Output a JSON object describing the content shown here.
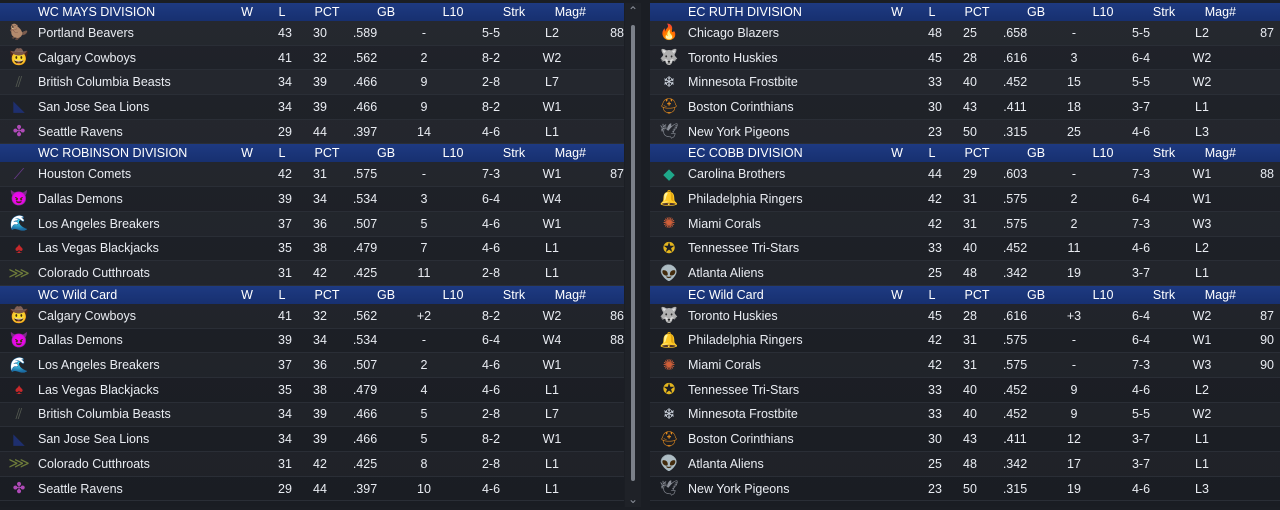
{
  "columns": {
    "w": "W",
    "l": "L",
    "pct": "PCT",
    "gb": "GB",
    "l10": "L10",
    "strk": "Strk",
    "mag": "Mag#"
  },
  "left": [
    {
      "title": "WC MAYS DIVISION",
      "rows": [
        {
          "logo": "beaver-icon",
          "color": "#2f7a3c",
          "glyph": "🦫",
          "team": "Portland Beavers",
          "w": "43",
          "l": "30",
          "pct": ".589",
          "gb": "-",
          "l10": "5-5",
          "strk": "L2",
          "mag": "88"
        },
        {
          "logo": "cowboy-hat-icon",
          "color": "#4aa9d8",
          "glyph": "🤠",
          "team": "Calgary Cowboys",
          "w": "41",
          "l": "32",
          "pct": ".562",
          "gb": "2",
          "l10": "8-2",
          "strk": "W2",
          "mag": ""
        },
        {
          "logo": "beast-claw-icon",
          "color": "#555b52",
          "glyph": "⫽",
          "team": "British Columbia Beasts",
          "w": "34",
          "l": "39",
          "pct": ".466",
          "gb": "9",
          "l10": "2-8",
          "strk": "L7",
          "mag": ""
        },
        {
          "logo": "sea-lion-icon",
          "color": "#1e2f6e",
          "glyph": "◣",
          "team": "San Jose Sea Lions",
          "w": "34",
          "l": "39",
          "pct": ".466",
          "gb": "9",
          "l10": "8-2",
          "strk": "W1",
          "mag": ""
        },
        {
          "logo": "raven-icon",
          "color": "#b04ab8",
          "glyph": "✤",
          "team": "Seattle Ravens",
          "w": "29",
          "l": "44",
          "pct": ".397",
          "gb": "14",
          "l10": "4-6",
          "strk": "L1",
          "mag": ""
        }
      ]
    },
    {
      "title": "WC ROBINSON DIVISION",
      "rows": [
        {
          "logo": "comet-icon",
          "color": "#6a3a8c",
          "glyph": "⟋",
          "team": "Houston Comets",
          "w": "42",
          "l": "31",
          "pct": ".575",
          "gb": "-",
          "l10": "7-3",
          "strk": "W1",
          "mag": "87"
        },
        {
          "logo": "demon-icon",
          "color": "#a5221d",
          "glyph": "😈",
          "team": "Dallas Demons",
          "w": "39",
          "l": "34",
          "pct": ".534",
          "gb": "3",
          "l10": "6-4",
          "strk": "W4",
          "mag": ""
        },
        {
          "logo": "wave-icon",
          "color": "#1fa6c9",
          "glyph": "🌊",
          "team": "Los Angeles Breakers",
          "w": "37",
          "l": "36",
          "pct": ".507",
          "gb": "5",
          "l10": "4-6",
          "strk": "W1",
          "mag": ""
        },
        {
          "logo": "spade-icon",
          "color": "#c8282b",
          "glyph": "♠",
          "team": "Las Vegas Blackjacks",
          "w": "35",
          "l": "38",
          "pct": ".479",
          "gb": "7",
          "l10": "4-6",
          "strk": "L1",
          "mag": ""
        },
        {
          "logo": "fish-icon",
          "color": "#6e7c3a",
          "glyph": "⋙",
          "team": "Colorado Cutthroats",
          "w": "31",
          "l": "42",
          "pct": ".425",
          "gb": "11",
          "l10": "2-8",
          "strk": "L1",
          "mag": ""
        }
      ]
    },
    {
      "title": "WC  Wild Card",
      "rows": [
        {
          "logo": "cowboy-hat-icon",
          "color": "#4aa9d8",
          "glyph": "🤠",
          "team": "Calgary Cowboys",
          "w": "41",
          "l": "32",
          "pct": ".562",
          "gb": "+2",
          "l10": "8-2",
          "strk": "W2",
          "mag": "86"
        },
        {
          "logo": "demon-icon",
          "color": "#a5221d",
          "glyph": "😈",
          "team": "Dallas Demons",
          "w": "39",
          "l": "34",
          "pct": ".534",
          "gb": "-",
          "l10": "6-4",
          "strk": "W4",
          "mag": "88"
        },
        {
          "logo": "wave-icon",
          "color": "#1fa6c9",
          "glyph": "🌊",
          "team": "Los Angeles Breakers",
          "w": "37",
          "l": "36",
          "pct": ".507",
          "gb": "2",
          "l10": "4-6",
          "strk": "W1",
          "mag": ""
        },
        {
          "logo": "spade-icon",
          "color": "#c8282b",
          "glyph": "♠",
          "team": "Las Vegas Blackjacks",
          "w": "35",
          "l": "38",
          "pct": ".479",
          "gb": "4",
          "l10": "4-6",
          "strk": "L1",
          "mag": ""
        },
        {
          "logo": "beast-claw-icon",
          "color": "#555b52",
          "glyph": "⫽",
          "team": "British Columbia Beasts",
          "w": "34",
          "l": "39",
          "pct": ".466",
          "gb": "5",
          "l10": "2-8",
          "strk": "L7",
          "mag": ""
        },
        {
          "logo": "sea-lion-icon",
          "color": "#1e2f6e",
          "glyph": "◣",
          "team": "San Jose Sea Lions",
          "w": "34",
          "l": "39",
          "pct": ".466",
          "gb": "5",
          "l10": "8-2",
          "strk": "W1",
          "mag": ""
        },
        {
          "logo": "fish-icon",
          "color": "#6e7c3a",
          "glyph": "⋙",
          "team": "Colorado Cutthroats",
          "w": "31",
          "l": "42",
          "pct": ".425",
          "gb": "8",
          "l10": "2-8",
          "strk": "L1",
          "mag": ""
        },
        {
          "logo": "raven-icon",
          "color": "#b04ab8",
          "glyph": "✤",
          "team": "Seattle Ravens",
          "w": "29",
          "l": "44",
          "pct": ".397",
          "gb": "10",
          "l10": "4-6",
          "strk": "L1",
          "mag": ""
        }
      ]
    }
  ],
  "right": [
    {
      "title": "EC RUTH DIVISION",
      "rows": [
        {
          "logo": "flame-icon",
          "color": "#e0501c",
          "glyph": "🔥",
          "team": "Chicago Blazers",
          "w": "48",
          "l": "25",
          "pct": ".658",
          "gb": "-",
          "l10": "5-5",
          "strk": "L2",
          "mag": "87"
        },
        {
          "logo": "husky-icon",
          "color": "#9aa0aa",
          "glyph": "🐺",
          "team": "Toronto Huskies",
          "w": "45",
          "l": "28",
          "pct": ".616",
          "gb": "3",
          "l10": "6-4",
          "strk": "W2",
          "mag": ""
        },
        {
          "logo": "snowflake-icon",
          "color": "#cfd6e0",
          "glyph": "❄",
          "team": "Minnesota Frostbite",
          "w": "33",
          "l": "40",
          "pct": ".452",
          "gb": "15",
          "l10": "5-5",
          "strk": "W2",
          "mag": ""
        },
        {
          "logo": "spartan-helmet-icon",
          "color": "#e28a1e",
          "glyph": "⛑",
          "team": "Boston Corinthians",
          "w": "30",
          "l": "43",
          "pct": ".411",
          "gb": "18",
          "l10": "3-7",
          "strk": "L1",
          "mag": ""
        },
        {
          "logo": "pigeon-icon",
          "color": "#8c9099",
          "glyph": "🕊",
          "team": "New York Pigeons",
          "w": "23",
          "l": "50",
          "pct": ".315",
          "gb": "25",
          "l10": "4-6",
          "strk": "L3",
          "mag": ""
        }
      ]
    },
    {
      "title": "EC COBB DIVISION",
      "rows": [
        {
          "logo": "diamond-icon",
          "color": "#1fa88a",
          "glyph": "◆",
          "team": "Carolina Brothers",
          "w": "44",
          "l": "29",
          "pct": ".603",
          "gb": "-",
          "l10": "7-3",
          "strk": "W1",
          "mag": "88"
        },
        {
          "logo": "liberty-bell-icon",
          "color": "#c8862a",
          "glyph": "🔔",
          "team": "Philadelphia Ringers",
          "w": "42",
          "l": "31",
          "pct": ".575",
          "gb": "2",
          "l10": "6-4",
          "strk": "W1",
          "mag": ""
        },
        {
          "logo": "coral-icon",
          "color": "#d0603a",
          "glyph": "✺",
          "team": "Miami Corals",
          "w": "42",
          "l": "31",
          "pct": ".575",
          "gb": "2",
          "l10": "7-3",
          "strk": "W3",
          "mag": ""
        },
        {
          "logo": "tri-star-icon",
          "color": "#e3b51e",
          "glyph": "✪",
          "team": "Tennessee Tri-Stars",
          "w": "33",
          "l": "40",
          "pct": ".452",
          "gb": "11",
          "l10": "4-6",
          "strk": "L2",
          "mag": ""
        },
        {
          "logo": "alien-icon",
          "color": "#3dbb3a",
          "glyph": "👽",
          "team": "Atlanta Aliens",
          "w": "25",
          "l": "48",
          "pct": ".342",
          "gb": "19",
          "l10": "3-7",
          "strk": "L1",
          "mag": ""
        }
      ]
    },
    {
      "title": "EC  Wild Card",
      "rows": [
        {
          "logo": "husky-icon",
          "color": "#9aa0aa",
          "glyph": "🐺",
          "team": "Toronto Huskies",
          "w": "45",
          "l": "28",
          "pct": ".616",
          "gb": "+3",
          "l10": "6-4",
          "strk": "W2",
          "mag": "87"
        },
        {
          "logo": "liberty-bell-icon",
          "color": "#c8862a",
          "glyph": "🔔",
          "team": "Philadelphia Ringers",
          "w": "42",
          "l": "31",
          "pct": ".575",
          "gb": "-",
          "l10": "6-4",
          "strk": "W1",
          "mag": "90"
        },
        {
          "logo": "coral-icon",
          "color": "#d0603a",
          "glyph": "✺",
          "team": "Miami Corals",
          "w": "42",
          "l": "31",
          "pct": ".575",
          "gb": "-",
          "l10": "7-3",
          "strk": "W3",
          "mag": "90"
        },
        {
          "logo": "tri-star-icon",
          "color": "#e3b51e",
          "glyph": "✪",
          "team": "Tennessee Tri-Stars",
          "w": "33",
          "l": "40",
          "pct": ".452",
          "gb": "9",
          "l10": "4-6",
          "strk": "L2",
          "mag": ""
        },
        {
          "logo": "snowflake-icon",
          "color": "#cfd6e0",
          "glyph": "❄",
          "team": "Minnesota Frostbite",
          "w": "33",
          "l": "40",
          "pct": ".452",
          "gb": "9",
          "l10": "5-5",
          "strk": "W2",
          "mag": ""
        },
        {
          "logo": "spartan-helmet-icon",
          "color": "#e28a1e",
          "glyph": "⛑",
          "team": "Boston Corinthians",
          "w": "30",
          "l": "43",
          "pct": ".411",
          "gb": "12",
          "l10": "3-7",
          "strk": "L1",
          "mag": ""
        },
        {
          "logo": "alien-icon",
          "color": "#3dbb3a",
          "glyph": "👽",
          "team": "Atlanta Aliens",
          "w": "25",
          "l": "48",
          "pct": ".342",
          "gb": "17",
          "l10": "3-7",
          "strk": "L1",
          "mag": ""
        },
        {
          "logo": "pigeon-icon",
          "color": "#8c9099",
          "glyph": "🕊",
          "team": "New York Pigeons",
          "w": "23",
          "l": "50",
          "pct": ".315",
          "gb": "19",
          "l10": "4-6",
          "strk": "L3",
          "mag": ""
        }
      ]
    }
  ],
  "scrollbar": {
    "up_glyph": "⌃",
    "down_glyph": "⌄"
  }
}
